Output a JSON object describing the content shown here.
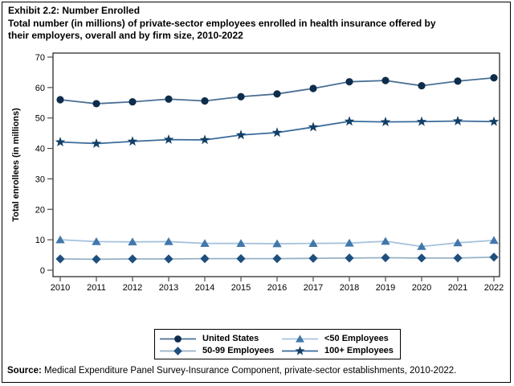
{
  "header": {
    "lines": [
      "Exhibit 2.2: Number Enrolled",
      "Total number (in millions) of private-sector employees enrolled in health insurance offered by",
      "their employers, overall and by firm size, 2010-2022"
    ]
  },
  "source": {
    "label": "Source:",
    "text": " Medical Expenditure Panel Survey-Insurance Component, private-sector establishments, 2010-2022."
  },
  "chart_data": {
    "type": "line",
    "title": "Exhibit 2.2: Number Enrolled",
    "subtitle": "Total number (in millions) of private-sector employees enrolled in health insurance offered by their employers, overall and by firm size, 2010-2022",
    "x": [
      2010,
      2011,
      2012,
      2013,
      2014,
      2015,
      2016,
      2017,
      2018,
      2019,
      2020,
      2021,
      2022
    ],
    "xlabel": "",
    "ylabel": "Total enrollees (in millions)",
    "ylim": [
      0,
      70
    ],
    "yticks": [
      0,
      10,
      20,
      30,
      40,
      50,
      60,
      70
    ],
    "grid": false,
    "legend_position": "bottom-center",
    "series": [
      {
        "name": "United States",
        "marker": "circle",
        "marker_color": "#0e2d4c",
        "line_color": "#4a6f94",
        "values": [
          56.0,
          54.7,
          55.3,
          56.2,
          55.6,
          57.0,
          57.9,
          59.7,
          61.9,
          62.3,
          60.6,
          62.1,
          63.2
        ]
      },
      {
        "name": "50-99 Employees",
        "marker": "diamond",
        "marker_color": "#1e4f7d",
        "line_color": "#97b1c4",
        "values": [
          3.7,
          3.6,
          3.7,
          3.7,
          3.8,
          3.8,
          3.8,
          3.9,
          4.0,
          4.1,
          4.0,
          4.0,
          4.3
        ]
      },
      {
        "name": "<50 Employees",
        "marker": "triangle",
        "marker_color": "#4277ab",
        "line_color": "#a6c3dd",
        "values": [
          10.0,
          9.4,
          9.3,
          9.4,
          8.8,
          8.8,
          8.7,
          8.8,
          8.9,
          9.5,
          7.8,
          9.0,
          9.8
        ]
      },
      {
        "name": "100+ Employees",
        "marker": "star",
        "marker_color": "#123f66",
        "line_color": "#3a6b9a",
        "values": [
          42.1,
          41.6,
          42.3,
          42.9,
          42.8,
          44.4,
          45.2,
          47.0,
          48.9,
          48.7,
          48.8,
          49.0,
          48.8
        ]
      }
    ]
  }
}
